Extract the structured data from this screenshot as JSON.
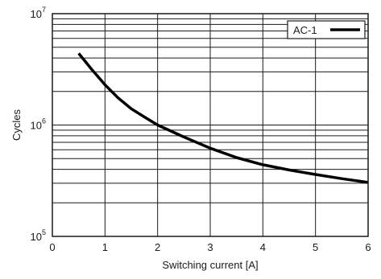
{
  "chart_data": {
    "type": "line",
    "title": "",
    "xlabel": "Switching current [A]",
    "ylabel": "Cycles",
    "xlim": [
      0,
      6
    ],
    "ylim": [
      100000,
      10000000
    ],
    "y_scale": "log",
    "grid": true,
    "legend_placement": "top-right",
    "x_ticks": [
      "0",
      "1",
      "2",
      "3",
      "4",
      "5",
      "6"
    ],
    "y_ticks": [
      {
        "base": "10",
        "exp": "5"
      },
      {
        "base": "10",
        "exp": "6"
      },
      {
        "base": "10",
        "exp": "7"
      }
    ],
    "series": [
      {
        "name": "AC-1",
        "color": "#000000",
        "x": [
          0.5,
          0.75,
          1.0,
          1.25,
          1.5,
          1.75,
          2.0,
          2.5,
          3.0,
          3.5,
          4.0,
          4.5,
          5.0,
          5.5,
          6.0
        ],
        "y": [
          4400000,
          3150000,
          2300000,
          1750000,
          1400000,
          1180000,
          1000000,
          780000,
          620000,
          510000,
          440000,
          395000,
          360000,
          330000,
          305000
        ]
      }
    ]
  }
}
